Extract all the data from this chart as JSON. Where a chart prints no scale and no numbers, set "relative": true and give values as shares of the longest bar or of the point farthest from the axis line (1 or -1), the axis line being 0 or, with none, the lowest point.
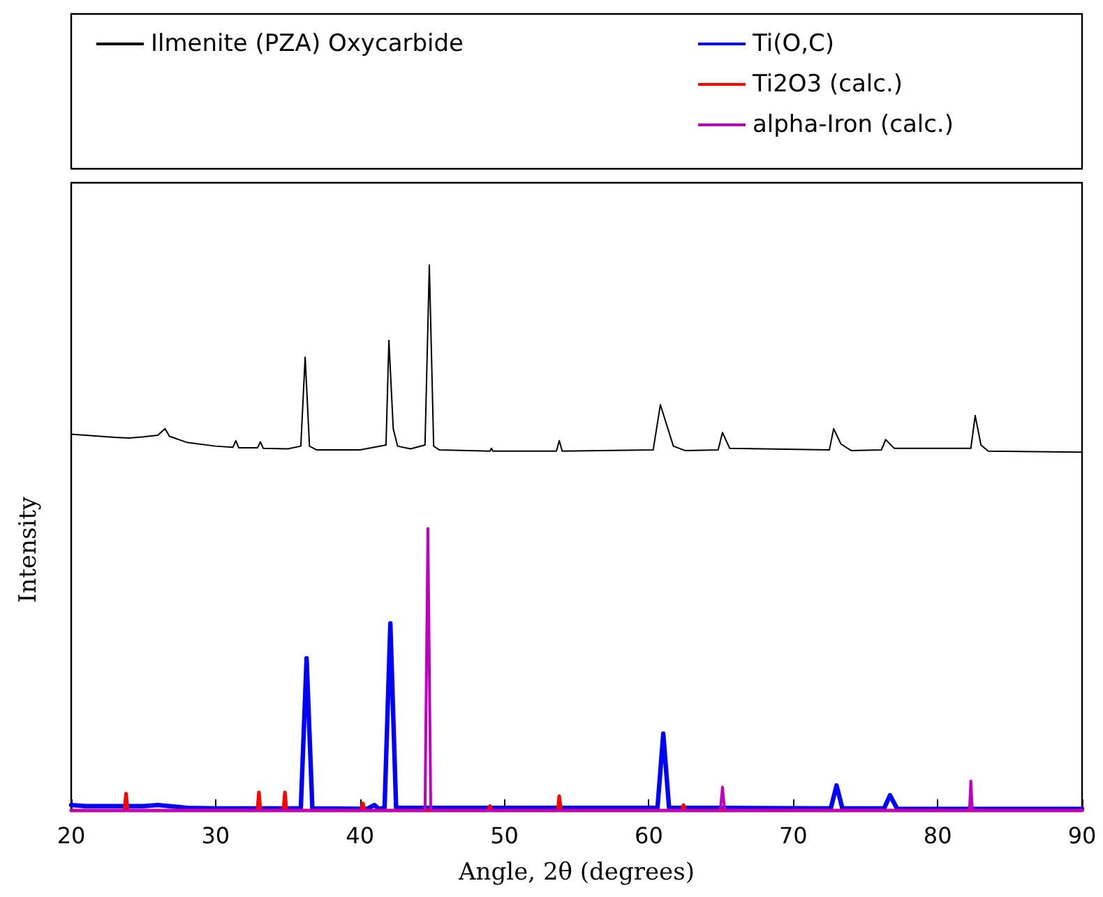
{
  "chart_data": {
    "type": "line",
    "relative": true,
    "xlabel": "Angle, 2θ (degrees)",
    "ylabel": "Intensity",
    "xlim": [
      20,
      90
    ],
    "xticks": [
      20,
      30,
      40,
      50,
      60,
      70,
      80,
      90
    ],
    "legend": "top",
    "marker": "none",
    "line_style": "solid",
    "grid": false,
    "series": [
      {
        "name": "Ilmenite (PZA) Oxycarbide",
        "color": "#000000",
        "x": [
          20,
          21,
          22,
          23,
          24,
          25,
          26,
          26.5,
          26.8,
          28,
          30,
          31.2,
          31.4,
          31.6,
          32.9,
          33.1,
          33.3,
          35,
          35.9,
          36.2,
          36.5,
          37,
          40,
          41.8,
          42.0,
          42.3,
          42.6,
          43.5,
          44.5,
          44.8,
          45.1,
          45.5,
          49,
          49.1,
          49.2,
          53.6,
          53.8,
          54.0,
          60.3,
          60.8,
          61.2,
          61.7,
          62.5,
          64.8,
          65.1,
          65.6,
          72.5,
          72.8,
          73.3,
          74,
          76.1,
          76.4,
          77,
          82.3,
          82.6,
          83,
          83.5,
          90
        ],
        "values": [
          0.69,
          0.688,
          0.686,
          0.684,
          0.683,
          0.685,
          0.688,
          0.7,
          0.686,
          0.675,
          0.668,
          0.666,
          0.678,
          0.665,
          0.665,
          0.676,
          0.664,
          0.663,
          0.668,
          0.831,
          0.668,
          0.661,
          0.661,
          0.67,
          0.862,
          0.7,
          0.668,
          0.663,
          0.67,
          1.0,
          0.668,
          0.661,
          0.659,
          0.664,
          0.659,
          0.659,
          0.678,
          0.659,
          0.661,
          0.744,
          0.71,
          0.668,
          0.66,
          0.661,
          0.693,
          0.664,
          0.661,
          0.7,
          0.672,
          0.66,
          0.661,
          0.68,
          0.664,
          0.664,
          0.724,
          0.67,
          0.659,
          0.657
        ]
      },
      {
        "name": "Ti(O,C)",
        "color": "#0000ff",
        "x": [
          20,
          21,
          25,
          26,
          28,
          30,
          35.9,
          36.3,
          36.7,
          40.5,
          41,
          41.3,
          41.7,
          42.1,
          42.5,
          60.6,
          61.0,
          61.4,
          72.6,
          73.0,
          73.4,
          76.3,
          76.7,
          77.2,
          90
        ],
        "values": [
          0.01,
          0.008,
          0.008,
          0.01,
          0.005,
          0.004,
          0.004,
          0.279,
          0.004,
          0.003,
          0.01,
          0.003,
          0.005,
          0.343,
          0.005,
          0.005,
          0.141,
          0.005,
          0.004,
          0.046,
          0.004,
          0.004,
          0.028,
          0.003,
          0.003
        ]
      },
      {
        "name": "Ti2O3 (calc.)",
        "color": "#ff0000",
        "x": [
          20,
          23.7,
          23.8,
          23.9,
          32.9,
          33.0,
          33.1,
          34.7,
          34.8,
          34.9,
          40.1,
          40.2,
          40.3,
          48.9,
          49.0,
          49.1,
          53.7,
          53.8,
          53.9,
          62.3,
          62.4,
          62.5,
          90
        ],
        "values": [
          0,
          0,
          0.031,
          0,
          0,
          0.033,
          0,
          0,
          0.033,
          0,
          0,
          0.013,
          0,
          0,
          0.008,
          0,
          0,
          0.026,
          0,
          0,
          0.01,
          0,
          0
        ]
      },
      {
        "name": "alpha-Iron (calc.)",
        "color": "#bf00bf",
        "x": [
          20,
          44.5,
          44.7,
          44.9,
          64.95,
          65.1,
          65.25,
          82.2,
          82.3,
          82.4,
          90
        ],
        "values": [
          0,
          0,
          0.517,
          0,
          0,
          0.043,
          0,
          0,
          0.054,
          0,
          0
        ]
      }
    ]
  }
}
